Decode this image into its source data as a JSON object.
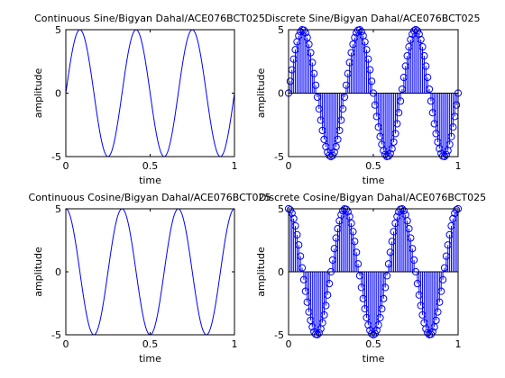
{
  "chart_data": [
    {
      "type": "line",
      "title": "Continuous Sine/Bigyan Dahal/ACE076BCT025",
      "xlabel": "time",
      "ylabel": "amplitude",
      "xlim": [
        0,
        1
      ],
      "ylim": [
        -5,
        5
      ],
      "xticks": [
        "0",
        "0.5",
        "1"
      ],
      "yticks": [
        "5",
        "0",
        "-5"
      ],
      "grid": false,
      "series": [
        {
          "function": "5*sin(2*pi*3*t)",
          "amplitude": 5,
          "frequency": 3,
          "phase": "sine",
          "x_range": [
            0,
            1
          ],
          "color": "#0000ff"
        }
      ]
    },
    {
      "type": "stem",
      "title": "Discrete Sine/Bigyan Dahal/ACE076BCT025",
      "xlabel": "time",
      "ylabel": "amplitude",
      "xlim": [
        0,
        1
      ],
      "ylim": [
        -5,
        5
      ],
      "xticks": [
        "0",
        "0.5",
        "1"
      ],
      "yticks": [
        "5",
        "0",
        "-5"
      ],
      "grid": false,
      "series": [
        {
          "function": "5*sin(2*pi*3*t)",
          "amplitude": 5,
          "frequency": 3,
          "phase": "sine",
          "sample_step": 0.01,
          "x_range": [
            0,
            1
          ],
          "marker": "circle",
          "color": "#0000ff"
        }
      ]
    },
    {
      "type": "line",
      "title": "Continuous Cosine/Bigyan Dahal/ACE076BCT025",
      "xlabel": "time",
      "ylabel": "amplitude",
      "xlim": [
        0,
        1
      ],
      "ylim": [
        -5,
        5
      ],
      "xticks": [
        "0",
        "0.5",
        "1"
      ],
      "yticks": [
        "5",
        "0",
        "-5"
      ],
      "grid": false,
      "series": [
        {
          "function": "5*cos(2*pi*3*t)",
          "amplitude": 5,
          "frequency": 3,
          "phase": "cosine",
          "x_range": [
            0,
            1
          ],
          "color": "#0000ff"
        }
      ]
    },
    {
      "type": "stem",
      "title": "Discrete Cosine/Bigyan Dahal/ACE076BCT025",
      "xlabel": "time",
      "ylabel": "amplitude",
      "xlim": [
        0,
        1
      ],
      "ylim": [
        -5,
        5
      ],
      "xticks": [
        "0",
        "0.5",
        "1"
      ],
      "yticks": [
        "5",
        "0",
        "-5"
      ],
      "grid": false,
      "series": [
        {
          "function": "5*cos(2*pi*3*t)",
          "amplitude": 5,
          "frequency": 3,
          "phase": "cosine",
          "sample_step": 0.01,
          "x_range": [
            0,
            1
          ],
          "marker": "circle",
          "color": "#0000ff"
        }
      ]
    }
  ]
}
